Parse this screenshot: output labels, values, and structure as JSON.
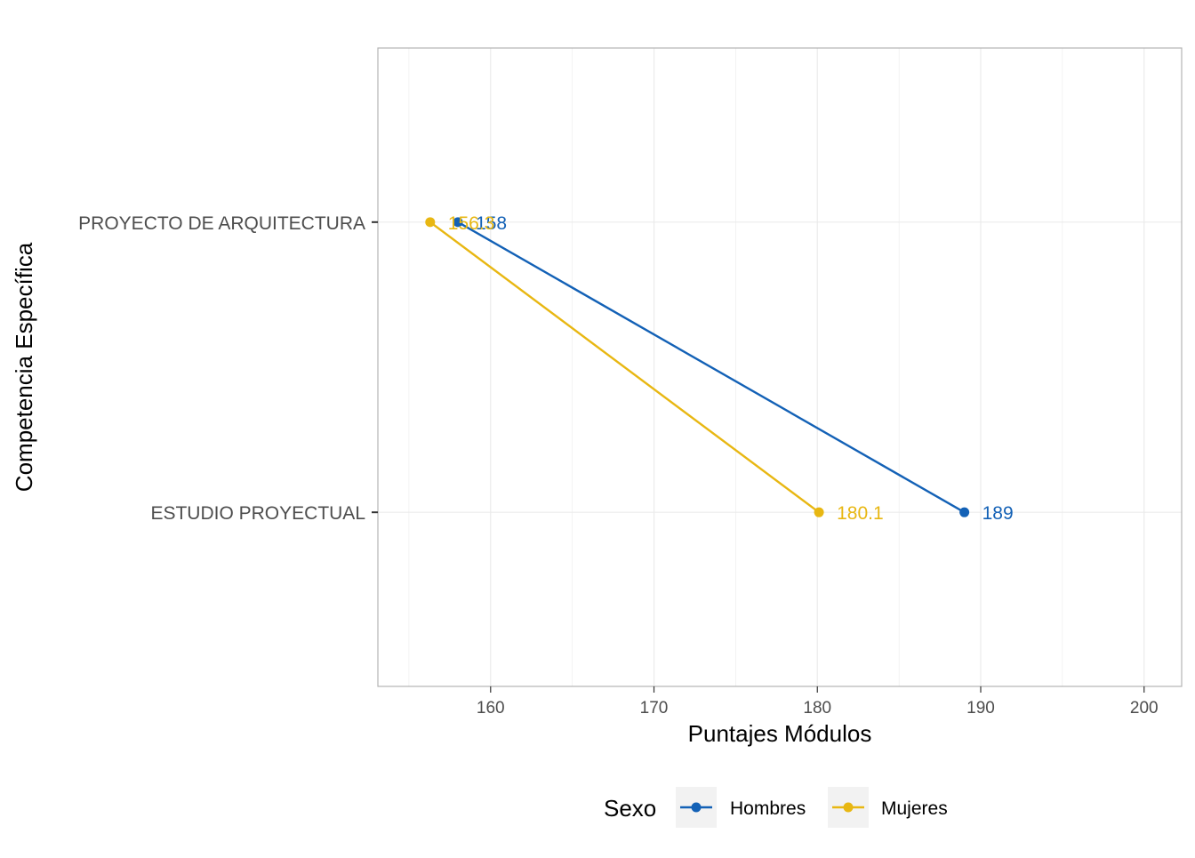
{
  "chart_data": {
    "type": "line",
    "xlabel": "Puntajes Módulos",
    "ylabel": "Competencia Específica",
    "xlim": [
      153.1,
      202.3
    ],
    "x_ticks": [
      160,
      170,
      180,
      190,
      200
    ],
    "categories": [
      "PROYECTO DE ARQUITECTURA",
      "ESTUDIO PROYECTUAL"
    ],
    "series": [
      {
        "name": "Hombres",
        "color": "#1361b6",
        "points": [
          {
            "category": "PROYECTO DE ARQUITECTURA",
            "x": 158,
            "label": "158"
          },
          {
            "category": "ESTUDIO PROYECTUAL",
            "x": 189,
            "label": "189"
          }
        ]
      },
      {
        "name": "Mujeres",
        "color": "#e8b712",
        "points": [
          {
            "category": "PROYECTO DE ARQUITECTURA",
            "x": 156.3,
            "label": "156.3"
          },
          {
            "category": "ESTUDIO PROYECTUAL",
            "x": 180.1,
            "label": "180.1"
          }
        ]
      }
    ],
    "legend": {
      "title": "Sexo",
      "position": "bottom"
    },
    "grid": true
  }
}
